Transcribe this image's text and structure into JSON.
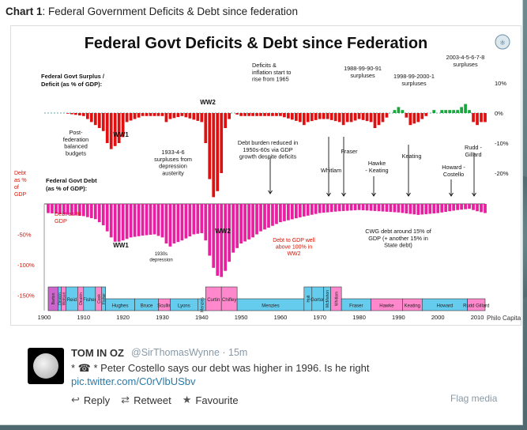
{
  "page": {
    "header_label": "Chart",
    "header_num": "1",
    "header_rest": ": Federal  Government Deficits & Debt since federation"
  },
  "chart_data": {
    "type": "bar",
    "title": "Federal Govt Deficits & Debt since Federation",
    "source": "Philo Capital",
    "xlabel_ticks": [
      "1900",
      "1910",
      "1920",
      "1930",
      "1940",
      "1950",
      "1960",
      "1970",
      "1980",
      "1990",
      "2000",
      "2010"
    ],
    "top_axis_label": "Federal Govt Surplus / Deficit (as % of GDP):",
    "top_ticks": [
      "10%",
      "0%",
      "-10%",
      "-20%"
    ],
    "bottom_axis_label": "Federal Govt Debt (as % of GDP):",
    "bottom_left_label": "Debt as % of GDP",
    "bottom_ticks": [
      "-50%",
      "-100%",
      "-150%"
    ],
    "series": [
      {
        "name": "deficit",
        "color_deficit": "#e01010",
        "color_surplus": "#17a83c",
        "x": [
          1901,
          1905,
          1910,
          1915,
          1916,
          1917,
          1918,
          1919,
          1920,
          1921,
          1925,
          1930,
          1931,
          1932,
          1935,
          1940,
          1941,
          1942,
          1943,
          1944,
          1945,
          1946,
          1947,
          1948,
          1950,
          1955,
          1960,
          1965,
          1966,
          1967,
          1970,
          1972,
          1975,
          1976,
          1977,
          1978,
          1980,
          1983,
          1984,
          1985,
          1986,
          1988,
          1989,
          1990,
          1991,
          1993,
          1995,
          1998,
          1999,
          2000,
          2001,
          2003,
          2005,
          2006,
          2007,
          2008,
          2009,
          2010,
          2011,
          2012
        ],
        "values": [
          0,
          0,
          -1,
          -6,
          -10,
          -12,
          -11,
          -10,
          -8,
          -3,
          -1,
          -1,
          -3,
          -2,
          -1,
          -3,
          -10,
          -22,
          -28,
          -26,
          -20,
          -5,
          -2,
          0,
          -1,
          -1,
          -1,
          -3,
          -4,
          -3,
          -2,
          -2,
          -3,
          -4,
          -3,
          -3,
          -2,
          -3,
          -5,
          -4,
          -3,
          0,
          1,
          2,
          1,
          -4,
          -3,
          0,
          1,
          0,
          1,
          1,
          1,
          2,
          3,
          1,
          -3,
          -4,
          -3,
          -3
        ]
      },
      {
        "name": "debt",
        "color": "#e81fa0",
        "x": [
          1901,
          1905,
          1910,
          1913,
          1915,
          1916,
          1917,
          1918,
          1919,
          1920,
          1922,
          1925,
          1928,
          1930,
          1931,
          1932,
          1933,
          1935,
          1938,
          1940,
          1941,
          1942,
          1943,
          1944,
          1945,
          1946,
          1947,
          1948,
          1950,
          1953,
          1955,
          1960,
          1965,
          1970,
          1975,
          1980,
          1985,
          1990,
          1995,
          2000,
          2005,
          2008,
          2010,
          2012
        ],
        "values": [
          -15,
          -17,
          -20,
          -25,
          -35,
          -45,
          -55,
          -62,
          -62,
          -60,
          -55,
          -52,
          -50,
          -55,
          -65,
          -70,
          -65,
          -60,
          -50,
          -48,
          -60,
          -85,
          -105,
          -118,
          -120,
          -110,
          -95,
          -80,
          -65,
          -55,
          -45,
          -30,
          -22,
          -15,
          -12,
          -10,
          -12,
          -14,
          -18,
          -15,
          -10,
          -8,
          -12,
          -15
        ]
      }
    ],
    "annotations": [
      {
        "text": "Deficits & inflation start to rise from 1965"
      },
      {
        "text": "1988-99-90-91 surpluses"
      },
      {
        "text": "1998-99-2000-1 surpluses"
      },
      {
        "text": "2003-4-5-6-7-8 surpluses"
      },
      {
        "text": "WW2"
      },
      {
        "text": "Post- federation balanced budgets"
      },
      {
        "text": "WW1"
      },
      {
        "text": "1933-4-6 surpluses from depression austerity"
      },
      {
        "text": "Debt burden reduced in 1950s-60s via GDP growth despite deficits"
      },
      {
        "text": "Whitlam"
      },
      {
        "text": "Fraser"
      },
      {
        "text": "Hawke - Keating"
      },
      {
        "text": "Keating"
      },
      {
        "text": "Howard - Costello"
      },
      {
        "text": "Rudd - Gillard"
      },
      {
        "text": "Debt as % GDP"
      },
      {
        "text": "WW1"
      },
      {
        "text": "1930s depression"
      },
      {
        "text": "WW2"
      },
      {
        "text": "Debt to GDP well above 100% in WW2"
      },
      {
        "text": "CWG debt around 15% of GDP (+ another 15% in State debt)"
      }
    ],
    "pm_boxes": [
      {
        "label": "Barton",
        "color": "#cc66cc"
      },
      {
        "label": "Deakin",
        "color": "#66ccee"
      },
      {
        "label": "Watson",
        "color": "#ff88cc"
      },
      {
        "label": "Reid",
        "color": "#66ccee"
      },
      {
        "label": "Deakin",
        "color": "#ff88cc"
      },
      {
        "label": "Fisher",
        "color": "#66ccee"
      },
      {
        "label": "Cook",
        "color": "#ff88cc"
      },
      {
        "label": "Fisher",
        "color": "#66ccee"
      },
      {
        "label": "Hughes",
        "color": "#66ccee"
      },
      {
        "label": "Bruce",
        "color": "#66ccee"
      },
      {
        "label": "Scullin",
        "color": "#ff88cc"
      },
      {
        "label": "Lyons",
        "color": "#66ccee"
      },
      {
        "label": "Menzies",
        "color": "#66ccee"
      },
      {
        "label": "Curtin",
        "color": "#ff88cc"
      },
      {
        "label": "Chifley",
        "color": "#ff88cc"
      },
      {
        "label": "Menzies",
        "color": "#66ccee"
      },
      {
        "label": "Holt",
        "color": "#66ccee"
      },
      {
        "label": "Gorton",
        "color": "#66ccee"
      },
      {
        "label": "McMahon",
        "color": "#66ccee"
      },
      {
        "label": "Whitlam",
        "color": "#ff88cc"
      },
      {
        "label": "Fraser",
        "color": "#66ccee"
      },
      {
        "label": "Hawke",
        "color": "#ff88cc"
      },
      {
        "label": "Keating",
        "color": "#ff88cc"
      },
      {
        "label": "Howard",
        "color": "#66ccee"
      },
      {
        "label": "Rudd Gillard",
        "color": "#ff88cc"
      }
    ]
  },
  "tweet": {
    "name": "TOM IN OZ",
    "handle": "@SirThomasWynne · 15m",
    "text": "* ☎ * Peter Costello says our debt was higher in 1996. Is he right",
    "link": "pic.twitter.com/C0rVlbUSbv",
    "reply": "Reply",
    "retweet": "Retweet",
    "favourite": "Favourite",
    "flag": "Flag media"
  }
}
